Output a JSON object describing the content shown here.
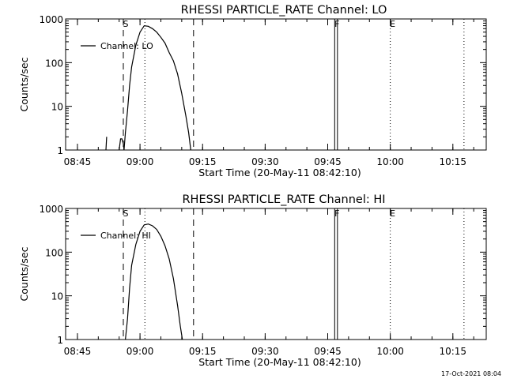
{
  "footer": {
    "timestamp": "17-Oct-2021 08:04"
  },
  "chart_data": [
    {
      "type": "line",
      "title": "RHESSI PARTICLE_RATE Channel: LO",
      "xlabel": "Start Time (20-May-11 08:42:10)",
      "ylabel": "Counts/sec",
      "y_scale": "log",
      "xlim": [
        "08:42:10",
        "10:23:00"
      ],
      "ylim": [
        1,
        1000
      ],
      "x_ticks": [
        "08:45",
        "09:00",
        "09:15",
        "09:30",
        "09:45",
        "10:00",
        "10:15"
      ],
      "y_ticks": [
        "1",
        "10",
        "100",
        "1000"
      ],
      "legend": {
        "placement": "top-left"
      },
      "markers": [
        {
          "label": "S",
          "time": "08:56:00",
          "style": "dashed"
        },
        {
          "label": "",
          "time": "09:12:50",
          "style": "dashed"
        },
        {
          "label": "",
          "time": "09:01:10",
          "style": "dotted"
        },
        {
          "label": "F",
          "time": "09:46:40",
          "style": "solid"
        },
        {
          "label": "",
          "time": "09:47:20",
          "style": "solid"
        },
        {
          "label": "E",
          "time": "10:00:00",
          "style": "dotted"
        },
        {
          "label": "",
          "time": "10:17:40",
          "style": "dotted"
        }
      ],
      "series": [
        {
          "name": "Channel: LO",
          "segments": [
            {
              "x": [
                "08:51:50",
                "08:52:00"
              ],
              "y": [
                1,
                2
              ]
            },
            {
              "x": [
                "08:55:00",
                "08:55:20",
                "08:55:40",
                "08:56:00",
                "08:56:10"
              ],
              "y": [
                1,
                1.8,
                1.8,
                1.4,
                1
              ]
            },
            {
              "x": [
                "08:56:10",
                "08:56:30",
                "08:57:00",
                "08:57:30",
                "08:58:00",
                "08:59:00",
                "09:00:00",
                "09:01:00",
                "09:02:00",
                "09:03:00",
                "09:04:00",
                "09:05:00",
                "09:06:00",
                "09:07:00",
                "09:08:00",
                "09:09:00",
                "09:10:00",
                "09:11:00",
                "09:11:40",
                "09:12:10"
              ],
              "y": [
                1,
                2.5,
                8,
                30,
                80,
                250,
                500,
                700,
                680,
                600,
                500,
                380,
                280,
                170,
                110,
                55,
                20,
                6,
                2.5,
                1
              ]
            }
          ]
        }
      ]
    },
    {
      "type": "line",
      "title": "RHESSI PARTICLE_RATE Channel: HI",
      "xlabel": "Start Time (20-May-11 08:42:10)",
      "ylabel": "Counts/sec",
      "y_scale": "log",
      "xlim": [
        "08:42:10",
        "10:23:00"
      ],
      "ylim": [
        1,
        1000
      ],
      "x_ticks": [
        "08:45",
        "09:00",
        "09:15",
        "09:30",
        "09:45",
        "10:00",
        "10:15"
      ],
      "y_ticks": [
        "1",
        "10",
        "100",
        "1000"
      ],
      "legend": {
        "placement": "top-left"
      },
      "markers": [
        {
          "label": "S",
          "time": "08:56:00",
          "style": "dashed"
        },
        {
          "label": "",
          "time": "09:12:50",
          "style": "dashed"
        },
        {
          "label": "",
          "time": "09:01:10",
          "style": "dotted"
        },
        {
          "label": "F",
          "time": "09:46:40",
          "style": "solid"
        },
        {
          "label": "",
          "time": "09:47:20",
          "style": "solid"
        },
        {
          "label": "E",
          "time": "10:00:00",
          "style": "dotted"
        },
        {
          "label": "",
          "time": "10:17:40",
          "style": "dotted"
        }
      ],
      "series": [
        {
          "name": "Channel: HI",
          "segments": [
            {
              "x": [
                "08:56:30",
                "08:57:00",
                "08:57:30",
                "08:58:00",
                "08:59:00",
                "09:00:00",
                "09:01:00",
                "09:02:00",
                "09:03:00",
                "09:04:00",
                "09:05:00",
                "09:06:00",
                "09:07:00",
                "09:08:00",
                "09:09:00",
                "09:09:40",
                "09:10:10"
              ],
              "y": [
                1,
                3,
                15,
                50,
                150,
                300,
                420,
                440,
                400,
                330,
                230,
                140,
                70,
                25,
                6,
                2,
                1
              ]
            }
          ]
        }
      ]
    }
  ]
}
